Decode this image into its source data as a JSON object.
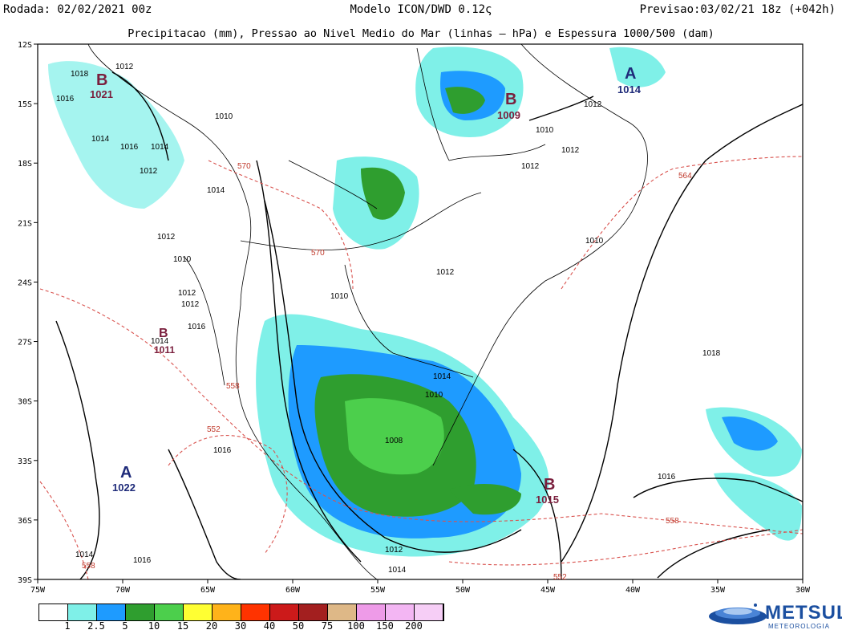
{
  "header": {
    "left": "Rodada: 02/02/2021 00z",
    "middle": "Modelo ICON/DWD 0.12ς",
    "right": "Previsao:03/02/21 18z (+042h)"
  },
  "subtitle": "Precipitacao (mm), Pressao ao Nivel Medio do Mar (linhas — hPa) e Espessura 1000/500 (dam)",
  "axes": {
    "lat_labels": [
      "12S",
      "15S",
      "18S",
      "21S",
      "24S",
      "27S",
      "30S",
      "33S",
      "36S",
      "39S"
    ],
    "lon_labels": [
      "75W",
      "70W",
      "65W",
      "60W",
      "55W",
      "50W",
      "45W",
      "40W",
      "35W",
      "30W"
    ]
  },
  "isobar_labels": [
    "1012",
    "1018",
    "1016",
    "1021",
    "1014",
    "1016",
    "1014",
    "1012",
    "1010",
    "1014",
    "1012",
    "1010",
    "1012",
    "1016",
    "1014",
    "1012",
    "1010",
    "1010",
    "1012",
    "1012",
    "1012",
    "1010",
    "1012",
    "1010",
    "1008",
    "1016",
    "1018",
    "1016",
    "1014",
    "1016",
    "1014",
    "1012",
    "1014"
  ],
  "thickness_labels": [
    "570",
    "570",
    "564",
    "558",
    "558",
    "552",
    "558",
    "552"
  ],
  "centers": [
    {
      "letter": "B",
      "value": "1021"
    },
    {
      "letter": "A",
      "value": "1014"
    },
    {
      "letter": "B",
      "value": "1009"
    },
    {
      "letter": "B",
      "value": "1011"
    },
    {
      "letter": "A",
      "value": "1022"
    },
    {
      "letter": "B",
      "value": "1015"
    }
  ],
  "colorbar": {
    "labels": [
      "1",
      "2.5",
      "5",
      "10",
      "15",
      "20",
      "30",
      "40",
      "50",
      "75",
      "100",
      "150",
      "200"
    ],
    "colors": [
      "#ffffff",
      "#7ff0e8",
      "#1e9bff",
      "#2f9e2f",
      "#4ccf4c",
      "#ffff33",
      "#ffb31a",
      "#ff3300",
      "#cc1a1a",
      "#a31f1f",
      "#deb887",
      "#ee9be8",
      "#f3b6f3",
      "#f6cef6"
    ]
  },
  "logo": {
    "name": "METSUL",
    "sub": "METEOROLOGIA"
  }
}
